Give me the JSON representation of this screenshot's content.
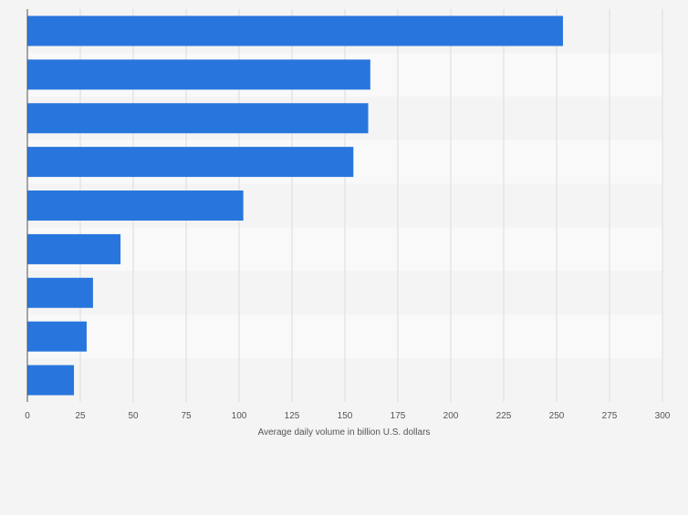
{
  "chart_data": {
    "type": "bar",
    "orientation": "horizontal",
    "categories": [
      "",
      "",
      "",
      "",
      "",
      "",
      "",
      "",
      ""
    ],
    "values": [
      253,
      162,
      161,
      154,
      102,
      44,
      31,
      28,
      22
    ],
    "xlabel": "Average daily volume in billion U.S. dollars",
    "xlim": [
      0,
      300
    ],
    "xticks": [
      0,
      25,
      50,
      75,
      100,
      125,
      150,
      175,
      200,
      225,
      250,
      275,
      300
    ],
    "grid": true,
    "bar_color": "#2876dd",
    "band_colors": [
      "#f4f4f4",
      "#f9f9f9"
    ]
  }
}
